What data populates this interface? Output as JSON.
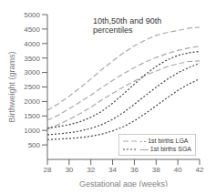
{
  "chart_data": {
    "type": "line",
    "title": "10th,50th and 90th\npercentiles",
    "xlabel": "Gestational age (weeks)",
    "ylabel": "Birthweight (grams)",
    "x": [
      28,
      29,
      30,
      31,
      32,
      33,
      34,
      35,
      36,
      37,
      38,
      39,
      40,
      41,
      42
    ],
    "xlim": [
      28,
      42
    ],
    "ylim": [
      0,
      5000
    ],
    "xticks": [
      28,
      30,
      32,
      34,
      36,
      38,
      40,
      42
    ],
    "yticks": [
      500,
      1000,
      1500,
      2000,
      2500,
      3000,
      3500,
      4000,
      4500,
      5000
    ],
    "grid": false,
    "legend": "lower right",
    "series": [
      {
        "name": "- - 1st births LGA",
        "color": "#aaaaaa",
        "line_style": "dashed",
        "values": [
          1050,
          1200,
          1380,
          1580,
          1800,
          2050,
          2280,
          2500,
          2700,
          2900,
          3050,
          3200,
          3300,
          3380,
          3400
        ]
      },
      {
        "name": "- - 1st births LGA",
        "color": "#aaaaaa",
        "line_style": "dashed",
        "values": [
          1350,
          1530,
          1750,
          1980,
          2220,
          2480,
          2730,
          2960,
          3170,
          3360,
          3520,
          3650,
          3760,
          3850,
          3900
        ]
      },
      {
        "name": "- - 1st births LGA",
        "color": "#aaaaaa",
        "line_style": "dashed",
        "values": [
          1700,
          1920,
          2180,
          2470,
          2780,
          3100,
          3400,
          3680,
          3920,
          4120,
          4280,
          4380,
          4450,
          4530,
          4560
        ]
      },
      {
        "name": "---- 1st births SGA",
        "color": "#444444",
        "line_style": "dotted",
        "values": [
          680,
          700,
          720,
          750,
          800,
          870,
          980,
          1130,
          1330,
          1580,
          1850,
          2120,
          2380,
          2600,
          2780
        ]
      },
      {
        "name": "---- 1st births SGA",
        "color": "#444444",
        "line_style": "dotted",
        "values": [
          850,
          880,
          920,
          980,
          1070,
          1200,
          1380,
          1620,
          1900,
          2200,
          2490,
          2760,
          2990,
          3170,
          3320
        ]
      },
      {
        "name": "---- 1st births SGA",
        "color": "#444444",
        "line_style": "dotted",
        "values": [
          1080,
          1130,
          1200,
          1300,
          1450,
          1660,
          1940,
          2260,
          2600,
          2930,
          3210,
          3430,
          3590,
          3680,
          3730
        ]
      }
    ]
  }
}
